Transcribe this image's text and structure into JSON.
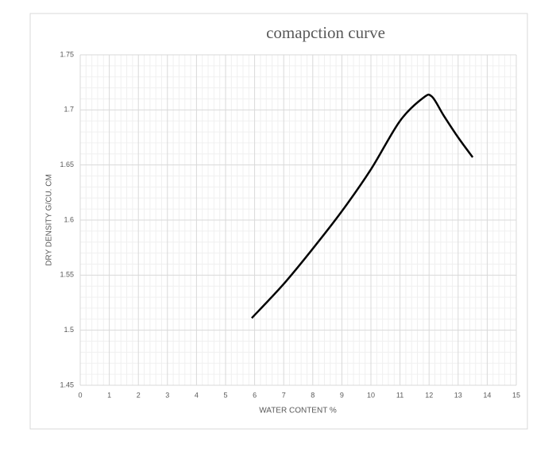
{
  "chart_data": {
    "type": "line",
    "title": "comapction curve",
    "x_label": "WATER CONTENT %",
    "y_label": "DRY DENSITY G/CU. CM",
    "x": [
      5.9,
      7,
      8,
      9,
      10,
      11,
      11.8,
      12.1,
      12.5,
      13,
      13.5
    ],
    "series": [
      {
        "color": "#000000",
        "values": [
          1.511,
          1.542,
          1.574,
          1.608,
          1.646,
          1.69,
          1.711,
          1.712,
          1.695,
          1.675,
          1.657
        ]
      }
    ],
    "xlim": [
      0,
      15
    ],
    "xticks": [
      0,
      1,
      2,
      3,
      4,
      5,
      6,
      7,
      8,
      9,
      10,
      11,
      12,
      13,
      14,
      15
    ],
    "ylim": [
      1.45,
      1.75
    ],
    "yticks": [
      1.45,
      1.5,
      1.55,
      1.6,
      1.65,
      1.7,
      1.75
    ],
    "grid": true,
    "minor_divisions": 5,
    "smooth": true
  }
}
